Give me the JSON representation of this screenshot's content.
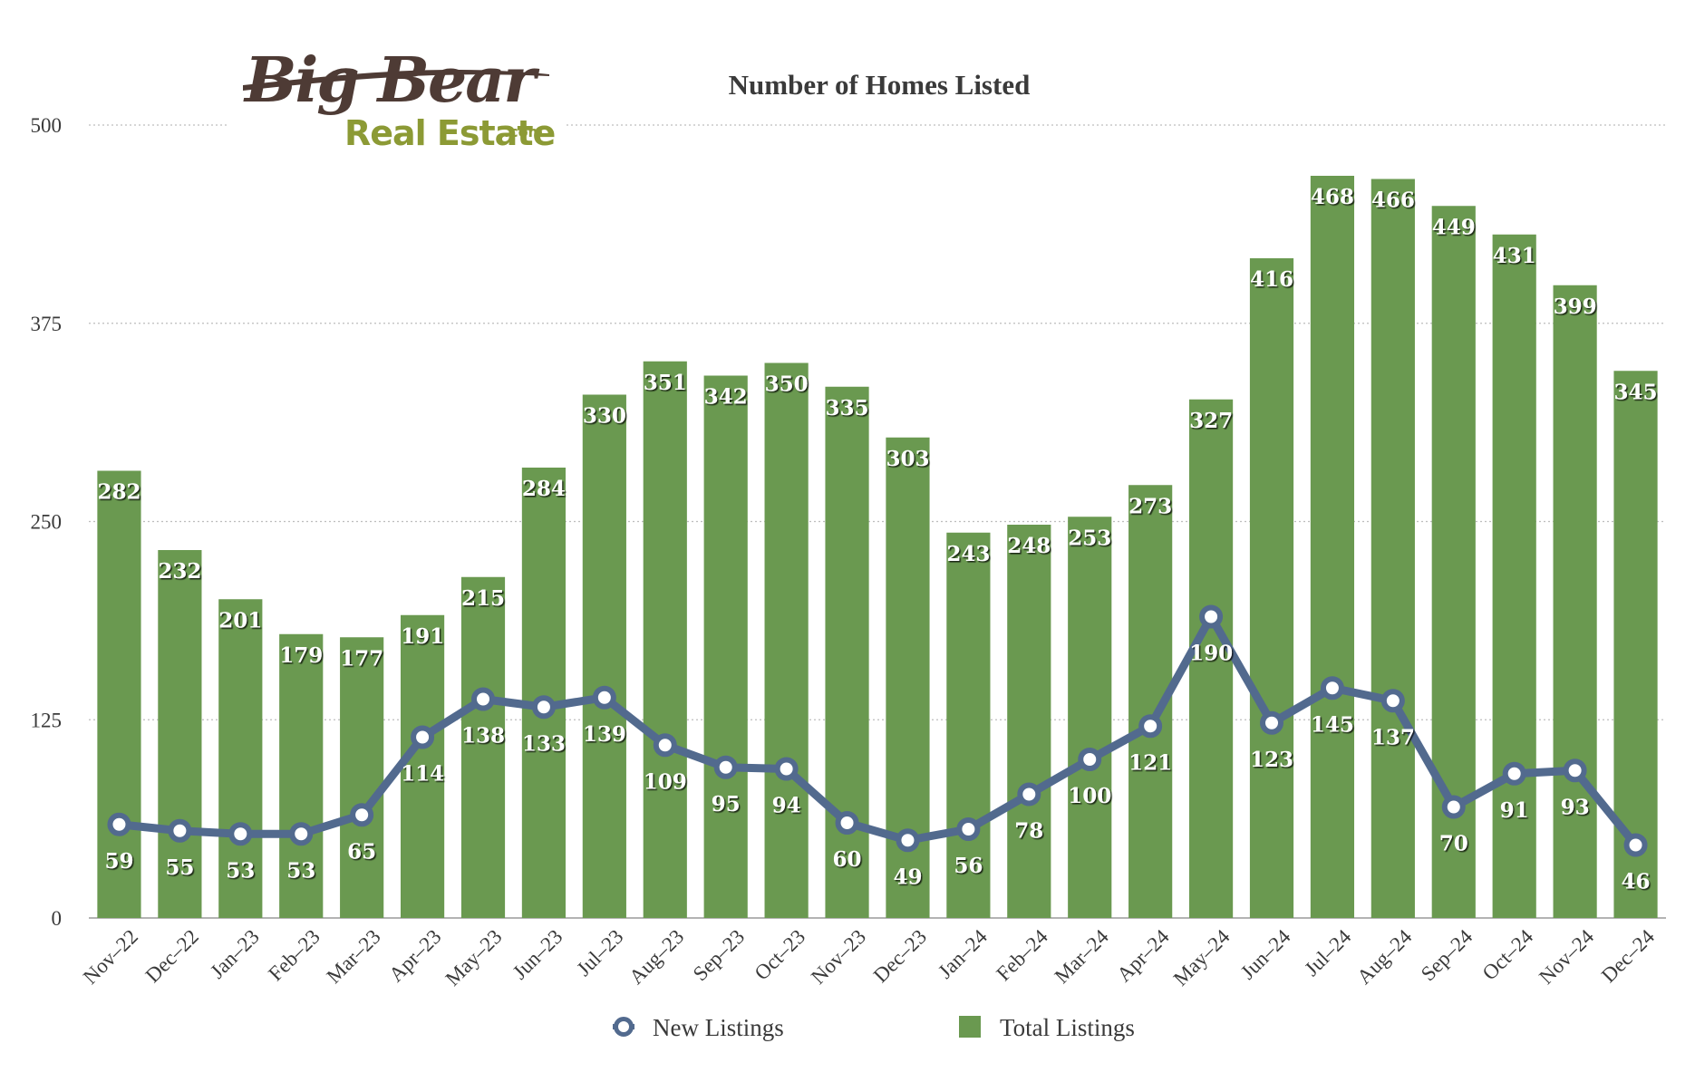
{
  "logo": {
    "brand_text": "Big Bear",
    "sub_text": "Real Estate",
    "domain_text": ".com"
  },
  "chart_data": {
    "type": "bar",
    "title": "Number of Homes Listed",
    "xlabel": "",
    "ylabel": "",
    "ylim": [
      0,
      500
    ],
    "yticks": [
      0,
      125,
      250,
      375,
      500
    ],
    "grid": true,
    "legend_position": "bottom",
    "categories": [
      "Nov–22",
      "Dec–22",
      "Jan–23",
      "Feb–23",
      "Mar–23",
      "Apr–23",
      "May–23",
      "Jun–23",
      "Jul–23",
      "Aug–23",
      "Sep–23",
      "Oct–23",
      "Nov–23",
      "Dec–23",
      "Jan–24",
      "Feb–24",
      "Mar–24",
      "Apr–24",
      "May–24",
      "Jun–24",
      "Jul–24",
      "Aug–24",
      "Sep–24",
      "Oct–24",
      "Nov–24",
      "Dec–24"
    ],
    "series": [
      {
        "name": "New Listings",
        "type": "line",
        "color": "#526A8E",
        "values": [
          59,
          55,
          53,
          53,
          65,
          114,
          138,
          133,
          139,
          109,
          95,
          94,
          60,
          49,
          56,
          78,
          100,
          121,
          190,
          123,
          145,
          137,
          70,
          91,
          93,
          46
        ]
      },
      {
        "name": "Total Listings",
        "type": "bar",
        "color": "#6A9950",
        "values": [
          282,
          232,
          201,
          179,
          177,
          191,
          215,
          284,
          330,
          351,
          342,
          350,
          335,
          303,
          243,
          248,
          253,
          273,
          327,
          416,
          468,
          466,
          449,
          431,
          399,
          345
        ]
      }
    ]
  },
  "style": {
    "title_color": "#3A3A3A",
    "axis_text_color": "#3A3A3A",
    "grid_color": "#BDBDBD",
    "logo_brand_color": "#4E3B35",
    "logo_sub_color": "#8C9A35"
  }
}
